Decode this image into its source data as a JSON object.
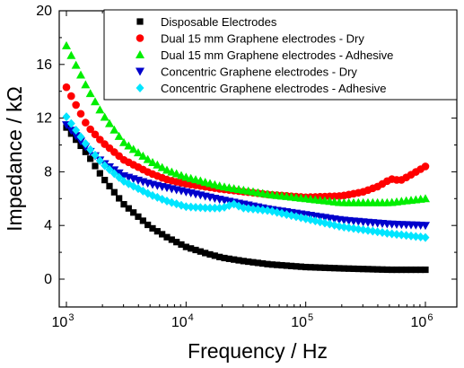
{
  "chart_data": {
    "type": "scatter",
    "xlabel": "Frequency / Hz",
    "ylabel": "Impedance / kΩ",
    "xscale": "log",
    "xlim": [
      1000,
      1000000
    ],
    "ylim": [
      0,
      20
    ],
    "x_ticks": [
      {
        "value": 1000,
        "base": "10",
        "exp": "3"
      },
      {
        "value": 10000,
        "base": "10",
        "exp": "4"
      },
      {
        "value": 100000,
        "base": "10",
        "exp": "5"
      },
      {
        "value": 1000000,
        "base": "10",
        "exp": "6"
      }
    ],
    "y_ticks": [
      0,
      4,
      8,
      12,
      16,
      20
    ],
    "grid": false,
    "legend_position": "top-right",
    "series": [
      {
        "name": "Disposable Electrodes",
        "marker": "square",
        "color": "#000000",
        "x": [
          1000,
          1500,
          2000,
          3000,
          5000,
          7000,
          10000,
          15000,
          20000,
          30000,
          50000,
          100000,
          200000,
          500000,
          1000000
        ],
        "y": [
          11.3,
          9.3,
          7.6,
          5.6,
          3.9,
          3.1,
          2.4,
          1.9,
          1.6,
          1.35,
          1.1,
          0.9,
          0.8,
          0.7,
          0.7
        ]
      },
      {
        "name": "Dual 15 mm Graphene electrodes - Dry",
        "marker": "circle",
        "color": "#ff0000",
        "x": [
          1000,
          1500,
          2000,
          3000,
          5000,
          7000,
          10000,
          20000,
          50000,
          100000,
          200000,
          300000,
          400000,
          500000,
          550000,
          600000,
          700000,
          800000,
          1000000
        ],
        "y": [
          14.3,
          11.4,
          10.2,
          8.9,
          7.9,
          7.4,
          7.1,
          6.7,
          6.3,
          6.1,
          6.2,
          6.5,
          6.9,
          7.4,
          7.5,
          7.3,
          7.6,
          7.9,
          8.4
        ]
      },
      {
        "name": "Dual 15 mm Graphene electrodes - Adhesive",
        "marker": "triangle-up",
        "color": "#00ee00",
        "x": [
          1000,
          1500,
          2000,
          3000,
          5000,
          7000,
          10000,
          20000,
          50000,
          100000,
          200000,
          500000,
          1000000
        ],
        "y": [
          17.4,
          14.2,
          12.3,
          10.2,
          8.8,
          8.1,
          7.6,
          6.9,
          6.3,
          6.0,
          5.7,
          5.7,
          6.0
        ]
      },
      {
        "name": "Concentric Graphene electrodes - Dry",
        "marker": "triangle-down",
        "color": "#0000cc",
        "x": [
          1000,
          1500,
          2000,
          3000,
          5000,
          7000,
          10000,
          20000,
          50000,
          100000,
          200000,
          500000,
          1000000
        ],
        "y": [
          11.5,
          9.7,
          8.7,
          7.7,
          7.1,
          6.8,
          6.5,
          5.9,
          5.2,
          4.8,
          4.4,
          4.1,
          4.0
        ]
      },
      {
        "name": "Concentric Graphene electrodes - Adhesive",
        "marker": "diamond",
        "color": "#00e5ff",
        "x": [
          1000,
          1500,
          2000,
          3000,
          5000,
          7000,
          10000,
          15000,
          20000,
          25000,
          30000,
          50000,
          100000,
          200000,
          500000,
          1000000
        ],
        "y": [
          12.1,
          9.9,
          8.6,
          7.3,
          6.3,
          5.8,
          5.4,
          5.3,
          5.3,
          5.6,
          5.3,
          5.1,
          4.5,
          3.9,
          3.4,
          3.1
        ]
      }
    ]
  }
}
